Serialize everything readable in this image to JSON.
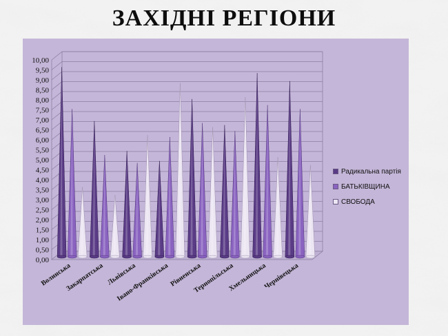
{
  "slide": {
    "title": "ЗАХІДНІ РЕГІОНИ"
  },
  "colors": {
    "panel": "#c4b6d8",
    "series": [
      "#5a3b86",
      "#8a63c0",
      "#ece6f3"
    ],
    "series_edge": [
      "#2e1a4d",
      "#4f3478",
      "#9c90ad"
    ]
  },
  "chart_data": {
    "type": "bar",
    "style": "3d-cone",
    "title": "",
    "xlabel": "",
    "ylabel": "",
    "ylim": [
      0,
      10
    ],
    "y_tick_step": 0.5,
    "y_tick_format": "comma-2dec",
    "grid": true,
    "legend": "right",
    "categories": [
      "Волинська",
      "Закарпатська",
      "Львівська",
      "Івано-Франківська",
      "Рівненська",
      "Тернопільська",
      "Хмельницька",
      "Чернівецька"
    ],
    "series": [
      {
        "name": "Радикальна партія",
        "values": [
          9.5,
          6.8,
          5.3,
          4.8,
          7.9,
          6.6,
          9.2,
          8.8
        ]
      },
      {
        "name": "БАТЬКІВЩИНА",
        "values": [
          7.4,
          5.1,
          4.7,
          6.0,
          6.7,
          6.3,
          7.6,
          7.4
        ]
      },
      {
        "name": "СВОБОДА",
        "values": [
          3.5,
          3.1,
          6.1,
          8.7,
          6.5,
          8.0,
          5.0,
          4.6
        ]
      }
    ]
  }
}
